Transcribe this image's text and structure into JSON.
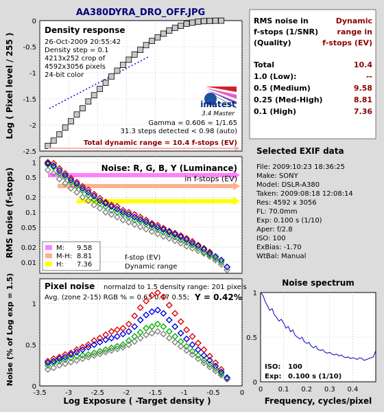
{
  "header": {
    "filename": "AA380DYRA_DRO_OFF.JPG"
  },
  "colors": {
    "background": "#dcdcdc",
    "panel": "#ffffff",
    "title_blue": "#00007f",
    "dark_red": "#8b0000",
    "red": "#e00000",
    "green": "#00b000",
    "blue": "#0000e0",
    "gray": "#808080",
    "magenta_band": "#ff80ff",
    "salmon_band": "#ffb090",
    "yellow_band": "#ffff00"
  },
  "density": {
    "title": "Density response",
    "info_lines": [
      "26-Oct-2009 20:55:42",
      "Density step = 0.1",
      "4213x252 crop of",
      "4592x3056 pixels",
      "24-bit color"
    ],
    "logo_text": "imatest",
    "logo_sub": "3.4  Master",
    "gamma_text": "Gamma = 0.606 = 1/1.65",
    "steps_text": "31.3 steps detected < 0.98 (auto)",
    "total_dr_text": "Total dynamic range = 10.4 f-stops (EV)",
    "ylabel": "Log ( Pixel level / 255 )",
    "yticks": [
      "0",
      "-0.5",
      "-1",
      "-1.5",
      "-2",
      "-2.5"
    ]
  },
  "rms_table": {
    "header_left": [
      "RMS noise in",
      "f-stops (1/SNR)",
      "(Quality)"
    ],
    "header_right": [
      "Dynamic",
      "range in",
      "f-stops (EV)"
    ],
    "rows": [
      {
        "label": "Total",
        "value": "10.4"
      },
      {
        "label": "1.0    (Low):",
        "value": "--"
      },
      {
        "label": "0.5    (Medium)",
        "value": "9.58"
      },
      {
        "label": "0.25 (Med-High)",
        "value": "8.81"
      },
      {
        "label": "0.1    (High)",
        "value": "7.36"
      }
    ]
  },
  "exif": {
    "title": "Selected EXIF data",
    "lines": [
      "File:  2009:10:23  18:36:25",
      "Make:  SONY",
      "Model: DSLR-A380",
      "Taken: 2009:08:18  12:08:14",
      "Res:   4592 x 3056",
      "FL:  70.0mm",
      "Exp:  0.100 s   (1/10)",
      "Aper:  f/2.8",
      "ISO:   100",
      "ExBias: -1.70",
      "WtBal: Manual"
    ]
  },
  "noise_fstop": {
    "title": "Noise: R, G, B, Y (Luminance)",
    "subtitle": "in f-stops (EV)",
    "ylabel": "RMS noise (f-stops)",
    "yticks": [
      "1",
      "0.5",
      "0.2",
      "0.1",
      "0.05",
      "0.02",
      "0.01"
    ],
    "legend": [
      {
        "label": "M:",
        "value": "9.58",
        "color": "#ff80ff"
      },
      {
        "label": "M-H:",
        "value": "8.81",
        "color": "#ffb090"
      },
      {
        "label": "H:",
        "value": "7.36",
        "color": "#ffff00"
      }
    ],
    "legend_note1": "f-stop (EV)",
    "legend_note2": "Dynamic range"
  },
  "pixel_noise": {
    "title": "Pixel noise",
    "subtitle": "normalzd to 1.5 density range: 201 pixels",
    "avg_text": "Avg. (zone 2-15) RGB % = 0.63  0.47  0.55;",
    "y_text": "Y = 0.42%",
    "ylabel": "Noise (% of Log exp = 1.5)",
    "yticks": [
      "1",
      "0.5",
      "0"
    ],
    "xlabel": "Log Exposure ( -Target density )",
    "xticks": [
      "-3.5",
      "-3",
      "-2.5",
      "-2",
      "-1.5",
      "-1",
      "-0.5",
      "0"
    ]
  },
  "spectrum": {
    "title": "Noise spectrum",
    "xlabel": "Frequency, cycles/pixel",
    "xticks": [
      "0",
      "0.1",
      "0.2",
      "0.3",
      "0.4"
    ],
    "yticks": [
      "1",
      "0.5",
      "0"
    ],
    "iso_label": "ISO:",
    "iso_value": "100",
    "exp_label": "Exp:",
    "exp_value": "0.100 s   (1/10)"
  },
  "chart_data": [
    {
      "type": "scatter",
      "title": "Density response",
      "ylabel": "Log ( Pixel level / 255 )",
      "xlim": [
        -3.5,
        0
      ],
      "ylim": [
        -2.5,
        0
      ],
      "x": [
        -3.36,
        -3.26,
        -3.16,
        -3.06,
        -2.96,
        -2.86,
        -2.76,
        -2.66,
        -2.56,
        -2.46,
        -2.36,
        -2.26,
        -2.16,
        -2.06,
        -1.96,
        -1.86,
        -1.76,
        -1.66,
        -1.56,
        -1.46,
        -1.36,
        -1.26,
        -1.16,
        -1.06,
        -0.96,
        -0.86,
        -0.76,
        -0.66,
        -0.56,
        -0.46,
        -0.36
      ],
      "y": [
        -2.4,
        -2.3,
        -2.18,
        -2.05,
        -1.93,
        -1.8,
        -1.68,
        -1.55,
        -1.43,
        -1.31,
        -1.19,
        -1.07,
        -0.96,
        -0.85,
        -0.75,
        -0.65,
        -0.56,
        -0.47,
        -0.39,
        -0.32,
        -0.25,
        -0.19,
        -0.14,
        -0.1,
        -0.06,
        -0.04,
        -0.02,
        -0.01,
        -0.005,
        -0.002,
        -0.001
      ]
    },
    {
      "type": "scatter",
      "title": "Noise: R, G, B, Y (Luminance)",
      "ylabel": "RMS noise (f-stops)",
      "yscale": "log",
      "xlim": [
        -3.5,
        0
      ],
      "ylim": [
        0.006,
        1.3
      ],
      "x": [
        -3.36,
        -3.26,
        -3.16,
        -3.06,
        -2.96,
        -2.86,
        -2.76,
        -2.66,
        -2.56,
        -2.46,
        -2.36,
        -2.26,
        -2.16,
        -2.06,
        -1.96,
        -1.86,
        -1.76,
        -1.66,
        -1.56,
        -1.46,
        -1.36,
        -1.26,
        -1.16,
        -1.06,
        -0.96,
        -0.86,
        -0.76,
        -0.66,
        -0.56,
        -0.46,
        -0.36,
        -0.26
      ],
      "series": [
        {
          "name": "R",
          "color": "#e00000",
          "values": [
            1.0,
            0.95,
            0.75,
            0.6,
            0.48,
            0.4,
            0.33,
            0.28,
            0.23,
            0.19,
            0.16,
            0.14,
            0.13,
            0.11,
            0.1,
            0.09,
            0.08,
            0.07,
            0.06,
            0.055,
            0.048,
            0.042,
            0.038,
            0.034,
            0.03,
            0.026,
            0.022,
            0.019,
            0.016,
            0.013,
            0.011,
            0.008
          ]
        },
        {
          "name": "G",
          "color": "#00b000",
          "values": [
            0.9,
            0.8,
            0.6,
            0.5,
            0.4,
            0.33,
            0.27,
            0.22,
            0.18,
            0.15,
            0.13,
            0.11,
            0.1,
            0.09,
            0.08,
            0.07,
            0.065,
            0.058,
            0.05,
            0.045,
            0.04,
            0.036,
            0.032,
            0.028,
            0.025,
            0.022,
            0.019,
            0.016,
            0.014,
            0.012,
            0.01,
            0.008
          ]
        },
        {
          "name": "B",
          "color": "#0000e0",
          "values": [
            0.95,
            0.85,
            0.68,
            0.55,
            0.44,
            0.37,
            0.3,
            0.25,
            0.21,
            0.17,
            0.15,
            0.13,
            0.115,
            0.1,
            0.09,
            0.08,
            0.072,
            0.064,
            0.056,
            0.05,
            0.045,
            0.04,
            0.036,
            0.032,
            0.028,
            0.024,
            0.021,
            0.018,
            0.015,
            0.013,
            0.011,
            0.008
          ]
        },
        {
          "name": "Y",
          "color": "#808080",
          "values": [
            0.7,
            0.6,
            0.46,
            0.38,
            0.3,
            0.25,
            0.2,
            0.17,
            0.14,
            0.12,
            0.1,
            0.09,
            0.08,
            0.07,
            0.063,
            0.057,
            0.051,
            0.046,
            0.041,
            0.037,
            0.033,
            0.03,
            0.027,
            0.024,
            0.021,
            0.019,
            0.017,
            0.015,
            0.013,
            0.011,
            0.009,
            0.007
          ]
        }
      ]
    },
    {
      "type": "scatter",
      "title": "Pixel noise",
      "ylabel": "Noise (% of Log exp = 1.5)",
      "xlabel": "Log Exposure ( -Target density )",
      "xlim": [
        -3.5,
        0
      ],
      "ylim": [
        0,
        1.3
      ],
      "x": [
        -3.36,
        -3.26,
        -3.16,
        -3.06,
        -2.96,
        -2.86,
        -2.76,
        -2.66,
        -2.56,
        -2.46,
        -2.36,
        -2.26,
        -2.16,
        -2.06,
        -1.96,
        -1.86,
        -1.76,
        -1.66,
        -1.56,
        -1.46,
        -1.36,
        -1.26,
        -1.16,
        -1.06,
        -0.96,
        -0.86,
        -0.76,
        -0.66,
        -0.56,
        -0.46,
        -0.36,
        -0.26
      ],
      "series": [
        {
          "name": "R",
          "color": "#e00000",
          "values": [
            0.3,
            0.33,
            0.35,
            0.38,
            0.4,
            0.44,
            0.47,
            0.5,
            0.55,
            0.58,
            0.62,
            0.66,
            0.68,
            0.7,
            0.75,
            0.85,
            0.95,
            1.03,
            1.1,
            1.13,
            1.08,
            0.98,
            0.88,
            0.78,
            0.68,
            0.6,
            0.52,
            0.44,
            0.36,
            0.28,
            0.2,
            0.1
          ]
        },
        {
          "name": "G",
          "color": "#00b000",
          "values": [
            0.25,
            0.28,
            0.3,
            0.32,
            0.34,
            0.36,
            0.37,
            0.38,
            0.4,
            0.42,
            0.44,
            0.46,
            0.48,
            0.5,
            0.55,
            0.6,
            0.65,
            0.7,
            0.72,
            0.75,
            0.72,
            0.66,
            0.6,
            0.54,
            0.48,
            0.42,
            0.37,
            0.31,
            0.26,
            0.21,
            0.15,
            0.09
          ]
        },
        {
          "name": "B",
          "color": "#0000e0",
          "values": [
            0.28,
            0.3,
            0.33,
            0.35,
            0.38,
            0.41,
            0.44,
            0.47,
            0.5,
            0.53,
            0.56,
            0.58,
            0.6,
            0.63,
            0.66,
            0.72,
            0.8,
            0.86,
            0.9,
            0.92,
            0.88,
            0.8,
            0.72,
            0.64,
            0.57,
            0.5,
            0.44,
            0.37,
            0.31,
            0.24,
            0.17,
            0.1
          ]
        },
        {
          "name": "Y",
          "color": "#808080",
          "values": [
            0.2,
            0.22,
            0.25,
            0.27,
            0.29,
            0.31,
            0.33,
            0.35,
            0.37,
            0.39,
            0.41,
            0.43,
            0.45,
            0.47,
            0.5,
            0.54,
            0.58,
            0.62,
            0.64,
            0.66,
            0.63,
            0.58,
            0.53,
            0.48,
            0.43,
            0.38,
            0.33,
            0.28,
            0.23,
            0.18,
            0.13,
            0.08
          ]
        }
      ]
    },
    {
      "type": "line",
      "title": "Noise spectrum",
      "xlabel": "Frequency, cycles/pixel",
      "xlim": [
        0,
        0.5
      ],
      "ylim": [
        0,
        1
      ],
      "x": [
        0.0,
        0.01,
        0.02,
        0.03,
        0.04,
        0.05,
        0.06,
        0.07,
        0.08,
        0.09,
        0.1,
        0.11,
        0.12,
        0.13,
        0.14,
        0.15,
        0.16,
        0.17,
        0.18,
        0.19,
        0.2,
        0.21,
        0.22,
        0.23,
        0.24,
        0.25,
        0.26,
        0.27,
        0.28,
        0.29,
        0.3,
        0.31,
        0.32,
        0.33,
        0.34,
        0.35,
        0.36,
        0.37,
        0.38,
        0.39,
        0.4,
        0.41,
        0.42,
        0.43,
        0.44,
        0.45,
        0.46,
        0.47,
        0.48,
        0.49,
        0.5
      ],
      "y": [
        1.0,
        0.97,
        0.9,
        0.85,
        0.8,
        0.82,
        0.75,
        0.72,
        0.68,
        0.7,
        0.66,
        0.6,
        0.62,
        0.56,
        0.58,
        0.52,
        0.5,
        0.48,
        0.5,
        0.45,
        0.43,
        0.44,
        0.4,
        0.38,
        0.4,
        0.36,
        0.35,
        0.36,
        0.33,
        0.32,
        0.33,
        0.31,
        0.3,
        0.31,
        0.29,
        0.3,
        0.28,
        0.27,
        0.28,
        0.26,
        0.27,
        0.26,
        0.25,
        0.27,
        0.26,
        0.24,
        0.25,
        0.26,
        0.27,
        0.28,
        0.35
      ]
    }
  ]
}
